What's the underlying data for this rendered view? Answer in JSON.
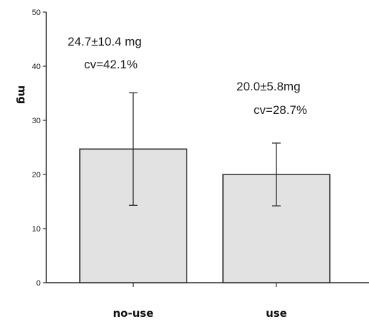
{
  "chart_data": {
    "type": "bar",
    "categories": [
      "no-use",
      "use"
    ],
    "values": [
      24.7,
      20.0
    ],
    "error_plus_minus": [
      10.4,
      5.8
    ],
    "ylabel": "mg",
    "ylim": [
      0,
      50
    ],
    "yticks": [
      "0",
      "10",
      "20",
      "30",
      "40",
      "50"
    ],
    "grid": false,
    "annotations": [
      {
        "line1": "24.7±10.4 mg",
        "line2": "cv=42.1%"
      },
      {
        "line1": "20.0±5.8mg",
        "line2": "cv=28.7%"
      }
    ],
    "colors": {
      "bar_fill": "#e2e2e2",
      "bar_stroke": "#2a2a2a",
      "axis": "#2a2a2a"
    }
  }
}
